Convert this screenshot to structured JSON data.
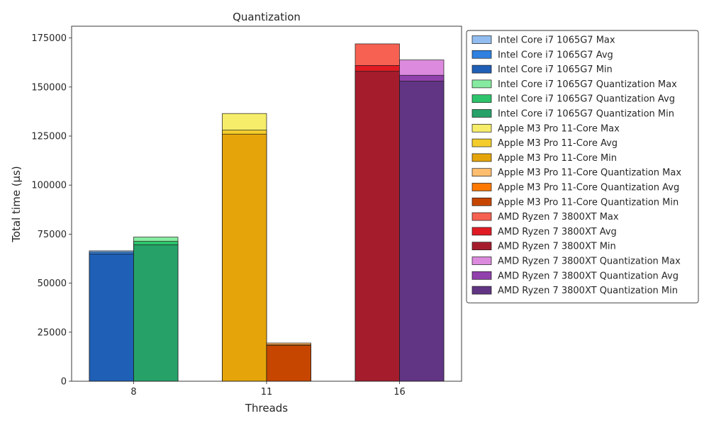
{
  "chart_data": {
    "type": "bar",
    "title": "Quantization",
    "xlabel": "Threads",
    "ylabel": "Total time (µs)",
    "categories": [
      "8",
      "11",
      "16"
    ],
    "ylim": [
      0,
      181000
    ],
    "yticks": [
      0,
      25000,
      50000,
      75000,
      100000,
      125000,
      150000,
      175000
    ],
    "grid": false,
    "legend_position": "outside-right",
    "groups": [
      {
        "category": "8",
        "series": [
          {
            "name": "Intel Core i7 1065G7",
            "max": 66500,
            "avg": 65800,
            "min": 64900,
            "colors": {
              "max": "#93bdf0",
              "avg": "#2f80e0",
              "min": "#1f5fb5"
            }
          },
          {
            "name": "Intel Core i7 1065G7 Quantization",
            "max": 73500,
            "avg": 71300,
            "min": 69600,
            "colors": {
              "max": "#86eba0",
              "avg": "#2ec46c",
              "min": "#26a269"
            }
          }
        ]
      },
      {
        "category": "11",
        "series": [
          {
            "name": "Apple M3 Pro 11-Core",
            "max": 136500,
            "avg": 128000,
            "min": 126000,
            "colors": {
              "max": "#f6ed6a",
              "avg": "#f4cd2c",
              "min": "#e5a50a"
            }
          },
          {
            "name": "Apple M3 Pro 11-Core Quantization",
            "max": 19500,
            "avg": 18700,
            "min": 18200,
            "colors": {
              "max": "#ffbe6f",
              "avg": "#ff7800",
              "min": "#c64600"
            }
          }
        ]
      },
      {
        "category": "16",
        "series": [
          {
            "name": "AMD Ryzen 7 3800XT",
            "max": 172000,
            "avg": 161000,
            "min": 158000,
            "colors": {
              "max": "#f66151",
              "avg": "#e01b24",
              "min": "#a51d2d"
            }
          },
          {
            "name": "AMD Ryzen 7 3800XT Quantization",
            "max": 163800,
            "avg": 156000,
            "min": 153000,
            "colors": {
              "max": "#dc8add",
              "avg": "#9141ac",
              "min": "#613583"
            }
          }
        ]
      }
    ],
    "legend": [
      {
        "label": "Intel Core i7 1065G7 Max",
        "color": "#93bdf0"
      },
      {
        "label": "Intel Core i7 1065G7 Avg",
        "color": "#2f80e0"
      },
      {
        "label": "Intel Core i7 1065G7 Min",
        "color": "#1f5fb5"
      },
      {
        "label": "Intel Core i7 1065G7 Quantization Max",
        "color": "#86eba0"
      },
      {
        "label": "Intel Core i7 1065G7 Quantization Avg",
        "color": "#2ec46c"
      },
      {
        "label": "Intel Core i7 1065G7 Quantization Min",
        "color": "#26a269"
      },
      {
        "label": "Apple M3 Pro 11-Core Max",
        "color": "#f6ed6a"
      },
      {
        "label": "Apple M3 Pro 11-Core Avg",
        "color": "#f4cd2c"
      },
      {
        "label": "Apple M3 Pro 11-Core Min",
        "color": "#e5a50a"
      },
      {
        "label": "Apple M3 Pro 11-Core Quantization Max",
        "color": "#ffbe6f"
      },
      {
        "label": "Apple M3 Pro 11-Core Quantization Avg",
        "color": "#ff7800"
      },
      {
        "label": "Apple M3 Pro 11-Core Quantization Min",
        "color": "#c64600"
      },
      {
        "label": "AMD Ryzen 7 3800XT Max",
        "color": "#f66151"
      },
      {
        "label": "AMD Ryzen 7 3800XT Avg",
        "color": "#e01b24"
      },
      {
        "label": "AMD Ryzen 7 3800XT Min",
        "color": "#a51d2d"
      },
      {
        "label": "AMD Ryzen 7 3800XT Quantization Max",
        "color": "#dc8add"
      },
      {
        "label": "AMD Ryzen 7 3800XT Quantization Avg",
        "color": "#9141ac"
      },
      {
        "label": "AMD Ryzen 7 3800XT Quantization Min",
        "color": "#613583"
      }
    ]
  }
}
